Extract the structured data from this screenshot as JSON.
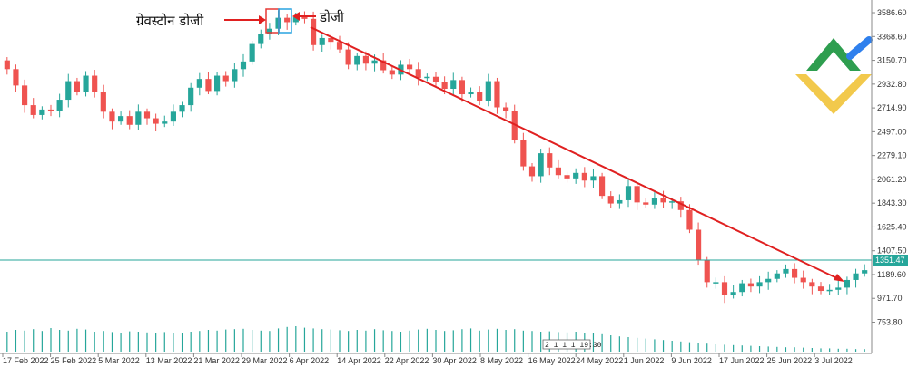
{
  "chart_data": {
    "type": "candlestick",
    "title": "",
    "x_labels": [
      "17 Feb 2022",
      "25 Feb 2022",
      "5 Mar 2022",
      "13 Mar 2022",
      "21 Mar 2022",
      "29 Mar 2022",
      "6 Apr 2022",
      "14 Apr 2022",
      "22 Apr 2022",
      "30 Apr 2022",
      "8 May 2022",
      "16 May 2022",
      "24 May 2022",
      "1 Jun 2022",
      "9 Jun 2022",
      "17 Jun 2022",
      "25 Jun 2022",
      "3 Jul 2022"
    ],
    "y_ticks": [
      "3586.60",
      "3368.60",
      "3150.70",
      "2932.80",
      "2714.90",
      "2497.00",
      "2279.10",
      "2061.20",
      "1843.30",
      "1625.40",
      "1407.50",
      "1189.60",
      "971.70",
      "753.80"
    ],
    "ylim": [
      700,
      3620
    ],
    "closes": [
      3070,
      2920,
      2740,
      2650,
      2700,
      2690,
      2790,
      2960,
      2860,
      3010,
      2860,
      2680,
      2590,
      2640,
      2560,
      2680,
      2620,
      2570,
      2590,
      2680,
      2740,
      2900,
      2980,
      2870,
      3010,
      2960,
      3070,
      3140,
      3300,
      3390,
      3440,
      3540,
      3500,
      3545,
      3530,
      3290,
      3355,
      3320,
      3250,
      3110,
      3190,
      3120,
      3150,
      3060,
      3020,
      3110,
      3070,
      2990,
      3000,
      2950,
      2890,
      2970,
      2840,
      2860,
      2780,
      2960,
      2720,
      2690,
      2420,
      2180,
      2090,
      2300,
      2170,
      2100,
      2070,
      2120,
      2050,
      2090,
      1910,
      1840,
      1870,
      2000,
      1850,
      1830,
      1890,
      1850,
      1860,
      1780,
      1600,
      1320,
      1120,
      1120,
      1000,
      1030,
      1110,
      1080,
      1120,
      1150,
      1200,
      1240,
      1160,
      1120,
      1080,
      1040,
      1050,
      1070,
      1140,
      1200,
      1230
    ],
    "opens": [
      3150,
      3070,
      2920,
      2740,
      2650,
      2700,
      2690,
      2790,
      2960,
      2860,
      3010,
      2860,
      2680,
      2590,
      2640,
      2560,
      2680,
      2620,
      2570,
      2590,
      2680,
      2740,
      2900,
      2980,
      2870,
      3010,
      2960,
      3070,
      3140,
      3300,
      3390,
      3440,
      3540,
      3500,
      3545,
      3530,
      3290,
      3355,
      3320,
      3250,
      3110,
      3190,
      3120,
      3150,
      3060,
      3020,
      3110,
      3070,
      2990,
      3000,
      2950,
      2890,
      2970,
      2840,
      2860,
      2780,
      2960,
      2720,
      2690,
      2420,
      2180,
      2090,
      2300,
      2170,
      2100,
      2070,
      2120,
      2050,
      2090,
      1910,
      1840,
      1870,
      2000,
      1850,
      1830,
      1890,
      1850,
      1860,
      1780,
      1600,
      1320,
      1120,
      1120,
      1000,
      1030,
      1110,
      1080,
      1120,
      1150,
      1200,
      1240,
      1160,
      1120,
      1080,
      1040,
      1050,
      1070,
      1140,
      1200
    ],
    "current_price": 1351.47,
    "current_price_label": "1351.47",
    "volume_ylim": [
      0,
      100
    ],
    "volumes": [
      55,
      60,
      58,
      62,
      57,
      65,
      60,
      58,
      63,
      61,
      55,
      57,
      54,
      52,
      56,
      55,
      53,
      51,
      54,
      50,
      52,
      55,
      57,
      60,
      58,
      61,
      62,
      63,
      60,
      58,
      57,
      64,
      68,
      70,
      66,
      64,
      62,
      61,
      59,
      57,
      60,
      58,
      62,
      59,
      57,
      55,
      58,
      61,
      63,
      60,
      57,
      59,
      62,
      64,
      58,
      61,
      63,
      60,
      62,
      58,
      57,
      55,
      56,
      54,
      53,
      55,
      52,
      50,
      48,
      45,
      42,
      40,
      38,
      36,
      34,
      32,
      30,
      28,
      26,
      24,
      22,
      20,
      19,
      18,
      17,
      16,
      15,
      14,
      13,
      12,
      12,
      11,
      10,
      9,
      9,
      8,
      8,
      7,
      7
    ],
    "time_badge": "2 1 1 1 19:30"
  },
  "annotations": {
    "gravestone_doji": "ग्रेवस्टोन डोजी",
    "doji": "डोजी"
  },
  "colors": {
    "bullish": "#26a69a",
    "bearish": "#ef5350",
    "trendline": "#e02020",
    "price_line": "#26a69a",
    "gravestone_box": "#e53935",
    "doji_box": "#29a3e0",
    "volume": "#26a69a",
    "logo_green": "#2e9e4f",
    "logo_yellow": "#f2c94c",
    "logo_blue": "#2f80ed"
  }
}
